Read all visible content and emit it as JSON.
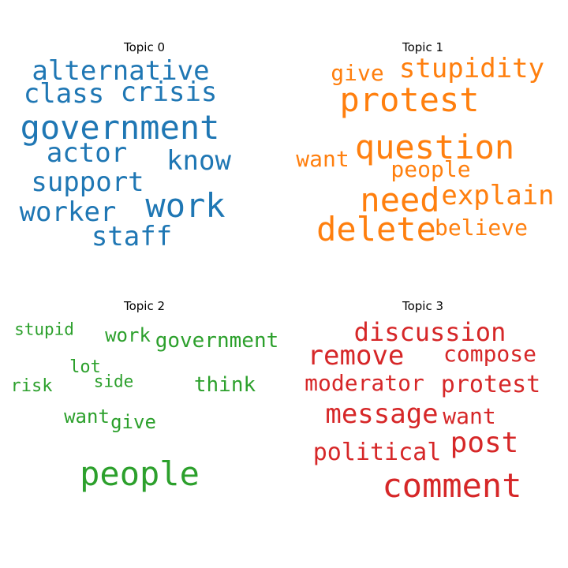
{
  "topics": [
    {
      "title": "Topic 0",
      "color": "#1f77b4",
      "words": [
        "alternative",
        "class",
        "crisis",
        "government",
        "actor",
        "know",
        "support",
        "work",
        "worker",
        "staff"
      ]
    },
    {
      "title": "Topic 1",
      "color": "#ff7f0e",
      "words": [
        "give",
        "stupidity",
        "protest",
        "question",
        "want",
        "people",
        "need",
        "explain",
        "delete",
        "believe"
      ]
    },
    {
      "title": "Topic 2",
      "color": "#2ca02c",
      "words": [
        "stupid",
        "work",
        "government",
        "lot",
        "side",
        "risk",
        "think",
        "want",
        "give",
        "people"
      ]
    },
    {
      "title": "Topic 3",
      "color": "#d62728",
      "words": [
        "discussion",
        "remove",
        "compose",
        "moderator",
        "protest",
        "message",
        "want",
        "post",
        "political",
        "comment"
      ]
    }
  ]
}
